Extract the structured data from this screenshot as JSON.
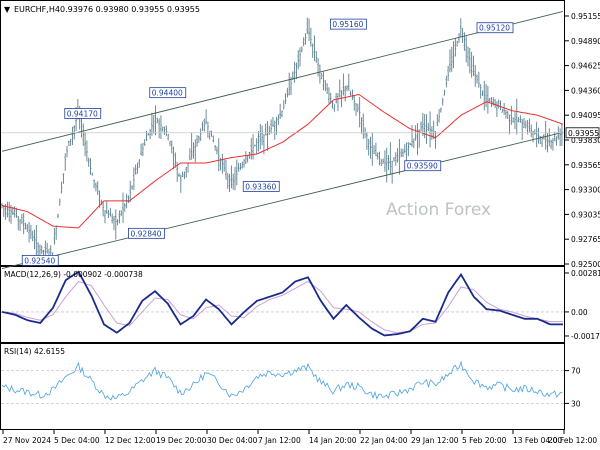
{
  "symbol_label": "EURCHF,H4",
  "ohlc_readout": "0.93976 0.93980 0.93955 0.93955",
  "watermark": "Action Forex",
  "colors": {
    "candle": "#5a7f8f",
    "ma": "#e8302f",
    "channel": "#3f5f4f",
    "annotation_text": "#1f3fa0",
    "annotation_border": "#1f3fa0",
    "macd_line": "#1a2a8c",
    "macd_signal": "#c9a0d8",
    "rsi_line": "#4aa3df",
    "grid": "#c8c8c8",
    "price_box": "#ffffff"
  },
  "chart_data": [
    {
      "type": "line",
      "panel": "price",
      "title": "EURCHF,H4",
      "subtitle": "0.93976 0.93980 0.93955 0.93955",
      "x_tick_labels": [
        "27 Nov 2024",
        "5 Dec 04:00",
        "12 Dec 12:00",
        "19 Dec 20:00",
        "30 Dec 04:00",
        "7 Jan 12:00",
        "14 Jan 20:00",
        "22 Jan 04:00",
        "29 Jan 12:00",
        "5 Feb 20:00",
        "13 Feb 04:00",
        "20 Feb 12:00"
      ],
      "y_tick_labels": [
        "0.95155",
        "0.94890",
        "0.94625",
        "0.94360",
        "0.94095",
        "0.93830",
        "0.93565",
        "0.93300",
        "0.93035",
        "0.92765",
        "0.92500"
      ],
      "ylim": [
        0.925,
        0.9525
      ],
      "current_price": "0.93955",
      "series": [
        {
          "style": "close",
          "x": [
            0,
            6,
            12,
            18,
            24,
            30,
            36,
            42,
            48,
            54,
            60,
            66,
            72,
            78,
            84,
            90,
            96,
            102,
            108,
            114,
            120,
            126,
            132,
            138,
            144,
            150,
            156,
            162,
            168,
            174,
            180,
            186,
            192,
            198,
            204,
            210,
            216,
            222,
            228,
            234,
            240,
            246,
            252,
            258,
            264
          ],
          "values": [
            0.9315,
            0.9305,
            0.929,
            0.9265,
            0.9262,
            0.937,
            0.9418,
            0.9352,
            0.931,
            0.9296,
            0.9326,
            0.9376,
            0.9412,
            0.9395,
            0.9342,
            0.9375,
            0.9408,
            0.937,
            0.9338,
            0.9365,
            0.9385,
            0.9398,
            0.942,
            0.9465,
            0.951,
            0.9462,
            0.9425,
            0.9448,
            0.942,
            0.9375,
            0.9362,
            0.9365,
            0.9382,
            0.9405,
            0.9395,
            0.946,
            0.9512,
            0.9462,
            0.9432,
            0.9425,
            0.9412,
            0.9405,
            0.9392,
            0.9385,
            0.9396
          ]
        },
        {
          "style": "moving-average",
          "x": [
            0,
            12,
            24,
            36,
            48,
            60,
            72,
            84,
            96,
            108,
            120,
            132,
            144,
            156,
            168,
            180,
            192,
            204,
            216,
            228,
            240,
            252,
            264
          ],
          "values": [
            0.9315,
            0.9308,
            0.9292,
            0.929,
            0.932,
            0.932,
            0.9342,
            0.9362,
            0.9362,
            0.9368,
            0.9372,
            0.9385,
            0.9405,
            0.9432,
            0.9438,
            0.9418,
            0.94,
            0.939,
            0.9415,
            0.943,
            0.942,
            0.9415,
            0.9405
          ]
        },
        {
          "style": "channel",
          "x": [
            0,
            264
          ],
          "values": [
            0.9375,
            0.953
          ]
        },
        {
          "style": "channel",
          "x": [
            0,
            264
          ],
          "values": [
            0.9245,
            0.9396
          ]
        }
      ],
      "annotations": [
        {
          "x": 18,
          "label": "0.92540",
          "value": 0.9254
        },
        {
          "x": 38,
          "label": "0.94170",
          "value": 0.9417
        },
        {
          "x": 78,
          "label": "0.94400",
          "value": 0.944
        },
        {
          "x": 68,
          "label": "0.92840",
          "value": 0.9284
        },
        {
          "x": 122,
          "label": "0.93360",
          "value": 0.9336
        },
        {
          "x": 163,
          "label": "0.95160",
          "value": 0.9516
        },
        {
          "x": 198,
          "label": "0.93590",
          "value": 0.9359
        },
        {
          "x": 232,
          "label": "0.95120",
          "value": 0.9512
        }
      ]
    },
    {
      "type": "line",
      "panel": "macd",
      "title": "MACD(12,26,9) -0.000902 -0.000738",
      "y_tick_labels": [
        "0.002813",
        "0.00",
        "-0.001737"
      ],
      "ylim": [
        -0.0021,
        0.0031
      ],
      "series": [
        {
          "style": "macd",
          "x": [
            0,
            6,
            12,
            18,
            24,
            30,
            36,
            42,
            48,
            54,
            60,
            66,
            72,
            78,
            84,
            90,
            96,
            102,
            108,
            114,
            120,
            126,
            132,
            138,
            144,
            150,
            156,
            162,
            168,
            174,
            180,
            186,
            192,
            198,
            204,
            210,
            216,
            222,
            228,
            234,
            240,
            246,
            252,
            258,
            264
          ],
          "values": [
            0.0,
            -0.0002,
            -0.0006,
            -0.0008,
            0.0003,
            0.0023,
            0.0029,
            0.0012,
            -0.0009,
            -0.0015,
            -0.0008,
            0.0008,
            0.0015,
            0.0006,
            -0.0009,
            -0.0003,
            0.0009,
            0.0002,
            -0.0009,
            0.0,
            0.0008,
            0.0011,
            0.0014,
            0.0022,
            0.0025,
            0.0008,
            -0.0005,
            0.0005,
            -0.0004,
            -0.0012,
            -0.0017,
            -0.0016,
            -0.0014,
            -0.0005,
            -0.0007,
            0.0014,
            0.0027,
            0.0011,
            0.0002,
            0.0001,
            -0.0002,
            -0.0005,
            -0.0005,
            -0.0009,
            -0.0009
          ]
        },
        {
          "style": "signal",
          "x": [
            0,
            6,
            12,
            18,
            24,
            30,
            36,
            42,
            48,
            54,
            60,
            66,
            72,
            78,
            84,
            90,
            96,
            102,
            108,
            114,
            120,
            126,
            132,
            138,
            144,
            150,
            156,
            162,
            168,
            174,
            180,
            186,
            192,
            198,
            204,
            210,
            216,
            222,
            228,
            234,
            240,
            246,
            252,
            258,
            264
          ],
          "values": [
            0.0,
            -0.0001,
            -0.0004,
            -0.0006,
            -0.0002,
            0.0011,
            0.0022,
            0.0019,
            0.0005,
            -0.0008,
            -0.001,
            0.0,
            0.001,
            0.0009,
            -0.0002,
            -0.0005,
            0.0003,
            0.0005,
            -0.0003,
            -0.0004,
            0.0004,
            0.0009,
            0.0012,
            0.0017,
            0.0022,
            0.0015,
            0.0003,
            0.0002,
            0.0,
            -0.0007,
            -0.0013,
            -0.0015,
            -0.0014,
            -0.0009,
            -0.0008,
            0.0004,
            0.0018,
            0.0016,
            0.0007,
            0.0002,
            0.0,
            -0.0003,
            -0.0005,
            -0.0007,
            -0.0007
          ]
        }
      ]
    },
    {
      "type": "line",
      "panel": "rsi",
      "title": "RSI(14) 42.6155",
      "y_tick_labels": [
        "70",
        "30"
      ],
      "ylim": [
        0,
        100
      ],
      "levels": [
        70,
        30
      ],
      "series": [
        {
          "style": "rsi",
          "x": [
            0,
            6,
            12,
            18,
            24,
            30,
            36,
            42,
            48,
            54,
            60,
            66,
            72,
            78,
            84,
            90,
            96,
            102,
            108,
            114,
            120,
            126,
            132,
            138,
            144,
            150,
            156,
            162,
            168,
            174,
            180,
            186,
            192,
            198,
            204,
            210,
            216,
            222,
            228,
            234,
            240,
            246,
            252,
            258,
            264
          ],
          "values": [
            50,
            47,
            44,
            40,
            46,
            62,
            75,
            58,
            40,
            36,
            44,
            58,
            70,
            61,
            43,
            52,
            67,
            56,
            39,
            48,
            63,
            68,
            66,
            70,
            74,
            56,
            45,
            53,
            50,
            41,
            38,
            42,
            48,
            56,
            53,
            65,
            78,
            58,
            50,
            52,
            47,
            48,
            45,
            40,
            43
          ]
        }
      ]
    }
  ]
}
